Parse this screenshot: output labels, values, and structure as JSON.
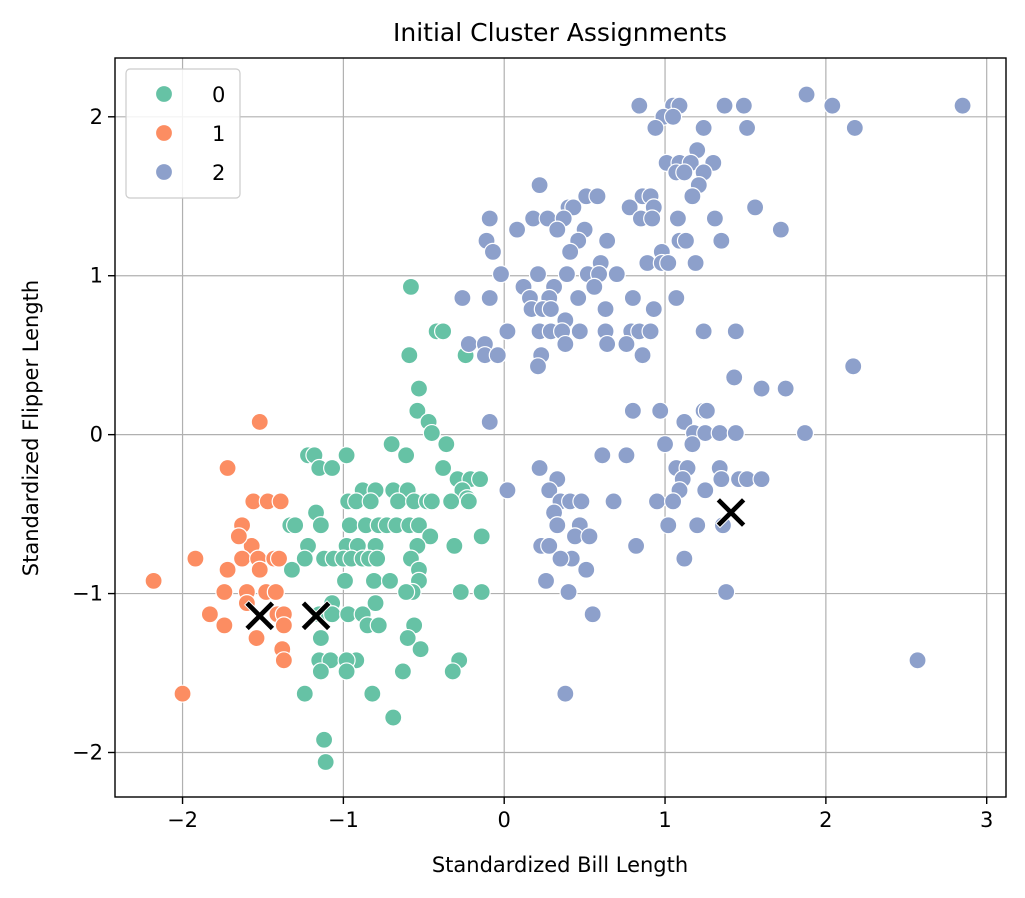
{
  "chart_data": {
    "type": "scatter",
    "title": "Initial Cluster Assignments",
    "xlabel": "Standardized Bill Length",
    "ylabel": "Standardized Flipper Length",
    "xlim": [
      -2.42,
      3.12
    ],
    "ylim": [
      -2.28,
      2.37
    ],
    "xticks": [
      -2,
      -1,
      0,
      1,
      2,
      3
    ],
    "yticks": [
      -2,
      -1,
      0,
      1,
      2
    ],
    "grid": true,
    "legend": {
      "placement": "upper-left",
      "entries": [
        "0",
        "1",
        "2"
      ]
    },
    "colors": {
      "0": "#66c2a5",
      "1": "#fc8d62",
      "2": "#8da0cb",
      "centroid": "#000000"
    },
    "series": [
      {
        "name": "0",
        "points": [
          [
            -0.58,
            0.93
          ],
          [
            -0.42,
            0.65
          ],
          [
            -0.38,
            0.65
          ],
          [
            -0.24,
            0.5
          ],
          [
            -0.59,
            0.5
          ],
          [
            -0.53,
            0.29
          ],
          [
            -0.54,
            0.15
          ],
          [
            -0.47,
            0.08
          ],
          [
            -0.45,
            0.01
          ],
          [
            -0.36,
            -0.06
          ],
          [
            -0.7,
            -0.06
          ],
          [
            -0.61,
            -0.13
          ],
          [
            -0.38,
            -0.21
          ],
          [
            -1.22,
            -0.13
          ],
          [
            -1.18,
            -0.13
          ],
          [
            -1.15,
            -0.21
          ],
          [
            -1.07,
            -0.21
          ],
          [
            -0.98,
            -0.13
          ],
          [
            -0.29,
            -0.28
          ],
          [
            -0.21,
            -0.28
          ],
          [
            -0.15,
            -0.28
          ],
          [
            -0.88,
            -0.35
          ],
          [
            -0.8,
            -0.35
          ],
          [
            -0.69,
            -0.35
          ],
          [
            -0.6,
            -0.35
          ],
          [
            -0.26,
            -0.35
          ],
          [
            -0.23,
            -0.4
          ],
          [
            -0.97,
            -0.42
          ],
          [
            -0.92,
            -0.42
          ],
          [
            -0.83,
            -0.42
          ],
          [
            -0.66,
            -0.42
          ],
          [
            -0.56,
            -0.42
          ],
          [
            -0.48,
            -0.42
          ],
          [
            -0.45,
            -0.42
          ],
          [
            -0.33,
            -0.42
          ],
          [
            -0.22,
            -0.42
          ],
          [
            -1.17,
            -0.49
          ],
          [
            -1.33,
            -0.57
          ],
          [
            -1.3,
            -0.57
          ],
          [
            -1.14,
            -0.57
          ],
          [
            -0.96,
            -0.57
          ],
          [
            -0.86,
            -0.57
          ],
          [
            -0.78,
            -0.57
          ],
          [
            -0.73,
            -0.57
          ],
          [
            -0.67,
            -0.57
          ],
          [
            -0.59,
            -0.57
          ],
          [
            -0.53,
            -0.57
          ],
          [
            -0.46,
            -0.64
          ],
          [
            -0.14,
            -0.64
          ],
          [
            -1.22,
            -0.7
          ],
          [
            -0.98,
            -0.7
          ],
          [
            -0.91,
            -0.7
          ],
          [
            -0.8,
            -0.7
          ],
          [
            -0.54,
            -0.7
          ],
          [
            -0.31,
            -0.7
          ],
          [
            -1.24,
            -0.78
          ],
          [
            -1.12,
            -0.78
          ],
          [
            -1.06,
            -0.78
          ],
          [
            -1.0,
            -0.78
          ],
          [
            -0.95,
            -0.78
          ],
          [
            -0.88,
            -0.78
          ],
          [
            -0.84,
            -0.78
          ],
          [
            -0.79,
            -0.78
          ],
          [
            -0.58,
            -0.78
          ],
          [
            -0.53,
            -0.85
          ],
          [
            -1.32,
            -0.85
          ],
          [
            -0.99,
            -0.92
          ],
          [
            -0.81,
            -0.92
          ],
          [
            -0.71,
            -0.92
          ],
          [
            -0.53,
            -0.92
          ],
          [
            -0.57,
            -0.99
          ],
          [
            -0.61,
            -0.99
          ],
          [
            -0.27,
            -0.99
          ],
          [
            -0.14,
            -0.99
          ],
          [
            -1.07,
            -1.06
          ],
          [
            -0.8,
            -1.06
          ],
          [
            -1.15,
            -1.13
          ],
          [
            -1.07,
            -1.13
          ],
          [
            -0.97,
            -1.13
          ],
          [
            -0.88,
            -1.13
          ],
          [
            -0.85,
            -1.2
          ],
          [
            -0.78,
            -1.2
          ],
          [
            -0.56,
            -1.2
          ],
          [
            -0.6,
            -1.28
          ],
          [
            -1.14,
            -1.28
          ],
          [
            -0.52,
            -1.35
          ],
          [
            -1.15,
            -1.42
          ],
          [
            -1.08,
            -1.42
          ],
          [
            -0.92,
            -1.42
          ],
          [
            -0.98,
            -1.42
          ],
          [
            -0.28,
            -1.42
          ],
          [
            -1.14,
            -1.49
          ],
          [
            -0.98,
            -1.49
          ],
          [
            -0.63,
            -1.49
          ],
          [
            -0.32,
            -1.49
          ],
          [
            -1.24,
            -1.63
          ],
          [
            -0.82,
            -1.63
          ],
          [
            -0.69,
            -1.78
          ],
          [
            -1.12,
            -1.92
          ],
          [
            -1.11,
            -2.06
          ]
        ]
      },
      {
        "name": "1",
        "points": [
          [
            -1.52,
            0.08
          ],
          [
            -1.72,
            -0.21
          ],
          [
            -1.56,
            -0.42
          ],
          [
            -1.47,
            -0.42
          ],
          [
            -1.39,
            -0.42
          ],
          [
            -1.63,
            -0.57
          ],
          [
            -1.57,
            -0.7
          ],
          [
            -1.65,
            -0.64
          ],
          [
            -1.92,
            -0.78
          ],
          [
            -1.63,
            -0.78
          ],
          [
            -1.53,
            -0.78
          ],
          [
            -1.43,
            -0.78
          ],
          [
            -1.4,
            -0.78
          ],
          [
            -1.72,
            -0.85
          ],
          [
            -1.52,
            -0.85
          ],
          [
            -1.74,
            -0.99
          ],
          [
            -1.6,
            -0.99
          ],
          [
            -1.48,
            -0.99
          ],
          [
            -1.42,
            -0.99
          ],
          [
            -2.18,
            -0.92
          ],
          [
            -1.6,
            -1.06
          ],
          [
            -1.83,
            -1.13
          ],
          [
            -1.41,
            -1.13
          ],
          [
            -1.37,
            -1.13
          ],
          [
            -1.74,
            -1.2
          ],
          [
            -1.37,
            -1.2
          ],
          [
            -1.54,
            -1.28
          ],
          [
            -1.38,
            -1.35
          ],
          [
            -1.37,
            -1.42
          ],
          [
            -2.0,
            -1.63
          ]
        ]
      },
      {
        "name": "2",
        "points": [
          [
            0.84,
            2.07
          ],
          [
            1.05,
            2.07
          ],
          [
            1.09,
            2.07
          ],
          [
            1.37,
            2.07
          ],
          [
            1.49,
            2.07
          ],
          [
            1.88,
            2.14
          ],
          [
            2.04,
            2.07
          ],
          [
            2.85,
            2.07
          ],
          [
            0.99,
            2.0
          ],
          [
            1.05,
            2.0
          ],
          [
            0.94,
            1.93
          ],
          [
            1.24,
            1.93
          ],
          [
            1.51,
            1.93
          ],
          [
            2.18,
            1.93
          ],
          [
            1.2,
            1.79
          ],
          [
            1.01,
            1.71
          ],
          [
            1.09,
            1.71
          ],
          [
            1.16,
            1.71
          ],
          [
            1.3,
            1.71
          ],
          [
            1.07,
            1.65
          ],
          [
            1.12,
            1.65
          ],
          [
            1.24,
            1.65
          ],
          [
            1.21,
            1.57
          ],
          [
            0.22,
            1.57
          ],
          [
            1.17,
            1.5
          ],
          [
            0.51,
            1.5
          ],
          [
            0.58,
            1.5
          ],
          [
            0.86,
            1.5
          ],
          [
            0.91,
            1.5
          ],
          [
            1.56,
            1.43
          ],
          [
            0.4,
            1.43
          ],
          [
            0.43,
            1.43
          ],
          [
            0.78,
            1.43
          ],
          [
            0.93,
            1.43
          ],
          [
            0.18,
            1.36
          ],
          [
            0.27,
            1.36
          ],
          [
            0.37,
            1.36
          ],
          [
            0.85,
            1.36
          ],
          [
            0.92,
            1.36
          ],
          [
            1.08,
            1.36
          ],
          [
            1.31,
            1.36
          ],
          [
            -0.09,
            1.36
          ],
          [
            0.08,
            1.29
          ],
          [
            0.33,
            1.29
          ],
          [
            0.5,
            1.29
          ],
          [
            1.72,
            1.29
          ],
          [
            -0.11,
            1.22
          ],
          [
            0.46,
            1.22
          ],
          [
            0.64,
            1.22
          ],
          [
            1.09,
            1.22
          ],
          [
            1.13,
            1.22
          ],
          [
            1.35,
            1.22
          ],
          [
            0.41,
            1.15
          ],
          [
            -0.07,
            1.15
          ],
          [
            0.98,
            1.15
          ],
          [
            0.89,
            1.08
          ],
          [
            0.98,
            1.08
          ],
          [
            1.02,
            1.08
          ],
          [
            1.19,
            1.08
          ],
          [
            0.6,
            1.08
          ],
          [
            -0.02,
            1.01
          ],
          [
            0.21,
            1.01
          ],
          [
            0.39,
            1.01
          ],
          [
            0.52,
            1.01
          ],
          [
            0.59,
            1.01
          ],
          [
            0.7,
            1.01
          ],
          [
            0.12,
            0.93
          ],
          [
            0.31,
            0.93
          ],
          [
            0.56,
            0.93
          ],
          [
            0.16,
            0.86
          ],
          [
            0.28,
            0.86
          ],
          [
            -0.26,
            0.86
          ],
          [
            -0.09,
            0.86
          ],
          [
            0.46,
            0.86
          ],
          [
            0.8,
            0.86
          ],
          [
            1.07,
            0.86
          ],
          [
            0.17,
            0.79
          ],
          [
            0.24,
            0.79
          ],
          [
            0.29,
            0.79
          ],
          [
            0.63,
            0.79
          ],
          [
            0.93,
            0.79
          ],
          [
            0.38,
            0.72
          ],
          [
            -0.22,
            0.57
          ],
          [
            -0.12,
            0.57
          ],
          [
            0.22,
            0.65
          ],
          [
            0.29,
            0.65
          ],
          [
            0.36,
            0.65
          ],
          [
            0.47,
            0.65
          ],
          [
            0.63,
            0.65
          ],
          [
            0.79,
            0.65
          ],
          [
            0.84,
            0.65
          ],
          [
            0.91,
            0.65
          ],
          [
            1.24,
            0.65
          ],
          [
            1.44,
            0.65
          ],
          [
            0.02,
            0.65
          ],
          [
            0.38,
            0.57
          ],
          [
            0.64,
            0.57
          ],
          [
            0.76,
            0.57
          ],
          [
            0.86,
            0.5
          ],
          [
            0.23,
            0.5
          ],
          [
            -0.12,
            0.5
          ],
          [
            -0.04,
            0.5
          ],
          [
            0.21,
            0.43
          ],
          [
            1.43,
            0.36
          ],
          [
            1.6,
            0.29
          ],
          [
            1.75,
            0.29
          ],
          [
            2.17,
            0.43
          ],
          [
            0.8,
            0.15
          ],
          [
            0.97,
            0.15
          ],
          [
            1.24,
            0.15
          ],
          [
            1.26,
            0.15
          ],
          [
            1.12,
            0.08
          ],
          [
            -0.09,
            0.08
          ],
          [
            1.18,
            0.01
          ],
          [
            1.25,
            0.01
          ],
          [
            1.34,
            0.01
          ],
          [
            1.44,
            0.01
          ],
          [
            1.87,
            0.01
          ],
          [
            1.0,
            -0.06
          ],
          [
            1.17,
            -0.06
          ],
          [
            1.07,
            -0.21
          ],
          [
            1.14,
            -0.21
          ],
          [
            1.34,
            -0.21
          ],
          [
            0.22,
            -0.21
          ],
          [
            0.33,
            -0.28
          ],
          [
            1.11,
            -0.28
          ],
          [
            1.35,
            -0.28
          ],
          [
            1.46,
            -0.28
          ],
          [
            1.51,
            -0.28
          ],
          [
            1.6,
            -0.28
          ],
          [
            0.61,
            -0.13
          ],
          [
            0.76,
            -0.13
          ],
          [
            0.02,
            -0.35
          ],
          [
            0.28,
            -0.35
          ],
          [
            1.09,
            -0.35
          ],
          [
            1.25,
            -0.35
          ],
          [
            0.35,
            -0.42
          ],
          [
            0.41,
            -0.42
          ],
          [
            0.48,
            -0.42
          ],
          [
            0.68,
            -0.42
          ],
          [
            0.95,
            -0.42
          ],
          [
            1.05,
            -0.42
          ],
          [
            0.31,
            -0.49
          ],
          [
            0.33,
            -0.57
          ],
          [
            0.47,
            -0.57
          ],
          [
            1.02,
            -0.57
          ],
          [
            1.2,
            -0.57
          ],
          [
            1.36,
            -0.57
          ],
          [
            0.23,
            -0.7
          ],
          [
            0.28,
            -0.7
          ],
          [
            0.44,
            -0.64
          ],
          [
            0.53,
            -0.64
          ],
          [
            0.82,
            -0.7
          ],
          [
            0.42,
            -0.78
          ],
          [
            0.35,
            -0.78
          ],
          [
            1.12,
            -0.78
          ],
          [
            0.51,
            -0.85
          ],
          [
            0.26,
            -0.92
          ],
          [
            0.4,
            -0.99
          ],
          [
            1.38,
            -0.99
          ],
          [
            0.55,
            -1.13
          ],
          [
            0.38,
            -1.63
          ],
          [
            2.57,
            -1.42
          ]
        ]
      }
    ],
    "centroids": [
      [
        -1.52,
        -1.14
      ],
      [
        -1.17,
        -1.14
      ],
      [
        1.41,
        -0.49
      ]
    ]
  }
}
